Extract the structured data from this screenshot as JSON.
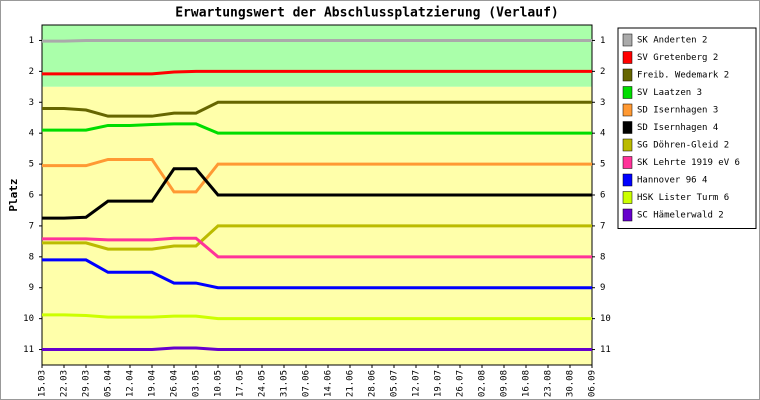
{
  "chart_data": {
    "type": "line",
    "title": "Erwartungswert der Abschlussplatzierung (Verlauf)",
    "y_label": "Platz",
    "categories": [
      "15.03",
      "22.03",
      "29.03",
      "05.04",
      "12.04",
      "19.04",
      "26.04",
      "03.05",
      "10.05",
      "17.05",
      "24.05",
      "31.05",
      "07.06",
      "14.06",
      "21.06",
      "28.06",
      "05.07",
      "12.07",
      "19.07",
      "26.07",
      "02.08",
      "09.08",
      "16.08",
      "23.08",
      "30.08",
      "06.09"
    ],
    "ylim": [
      11.5,
      0.5
    ],
    "yticks": [
      1,
      2,
      3,
      4,
      5,
      6,
      7,
      8,
      9,
      10,
      11
    ],
    "bands": [
      {
        "from": 0.5,
        "to": 2.5,
        "color": "#aaffaa"
      },
      {
        "from": 2.5,
        "to": 11.5,
        "color": "#ffffaa"
      }
    ],
    "legend": "right",
    "series": [
      {
        "name": "SK Anderten 2",
        "color": "#aaaaaa",
        "values": [
          1.02,
          1.02,
          1.0,
          1.0,
          1.0,
          1.0,
          1.0,
          1.0,
          1.0,
          1.0,
          1.0,
          1.0,
          1.0,
          1.0,
          1.0,
          1.0,
          1.0,
          1.0,
          1.0,
          1.0,
          1.0,
          1.0,
          1.0,
          1.0,
          1.0,
          1.0
        ]
      },
      {
        "name": "SV Gretenberg 2",
        "color": "#ff0000",
        "values": [
          2.08,
          2.08,
          2.08,
          2.08,
          2.08,
          2.08,
          2.02,
          2.0,
          2.0,
          2.0,
          2.0,
          2.0,
          2.0,
          2.0,
          2.0,
          2.0,
          2.0,
          2.0,
          2.0,
          2.0,
          2.0,
          2.0,
          2.0,
          2.0,
          2.0,
          2.0
        ]
      },
      {
        "name": "Freib. Wedemark 2",
        "color": "#666600",
        "values": [
          3.2,
          3.2,
          3.25,
          3.45,
          3.45,
          3.45,
          3.35,
          3.35,
          3.0,
          3.0,
          3.0,
          3.0,
          3.0,
          3.0,
          3.0,
          3.0,
          3.0,
          3.0,
          3.0,
          3.0,
          3.0,
          3.0,
          3.0,
          3.0,
          3.0,
          3.0
        ]
      },
      {
        "name": "SV Laatzen 3",
        "color": "#00dd00",
        "values": [
          3.9,
          3.9,
          3.9,
          3.75,
          3.75,
          3.72,
          3.7,
          3.7,
          4.0,
          4.0,
          4.0,
          4.0,
          4.0,
          4.0,
          4.0,
          4.0,
          4.0,
          4.0,
          4.0,
          4.0,
          4.0,
          4.0,
          4.0,
          4.0,
          4.0,
          4.0
        ]
      },
      {
        "name": "SD Isernhagen 3",
        "color": "#ff9933",
        "values": [
          5.05,
          5.05,
          5.05,
          4.85,
          4.85,
          4.85,
          5.9,
          5.9,
          5.0,
          5.0,
          5.0,
          5.0,
          5.0,
          5.0,
          5.0,
          5.0,
          5.0,
          5.0,
          5.0,
          5.0,
          5.0,
          5.0,
          5.0,
          5.0,
          5.0,
          5.0
        ]
      },
      {
        "name": "SD Isernhagen 4",
        "color": "#000000",
        "values": [
          6.75,
          6.75,
          6.72,
          6.2,
          6.2,
          6.2,
          5.15,
          5.15,
          6.0,
          6.0,
          6.0,
          6.0,
          6.0,
          6.0,
          6.0,
          6.0,
          6.0,
          6.0,
          6.0,
          6.0,
          6.0,
          6.0,
          6.0,
          6.0,
          6.0,
          6.0
        ]
      },
      {
        "name": "SG Döhren-Gleid 2",
        "color": "#bbbb00",
        "values": [
          7.55,
          7.55,
          7.55,
          7.75,
          7.75,
          7.75,
          7.65,
          7.65,
          7.0,
          7.0,
          7.0,
          7.0,
          7.0,
          7.0,
          7.0,
          7.0,
          7.0,
          7.0,
          7.0,
          7.0,
          7.0,
          7.0,
          7.0,
          7.0,
          7.0,
          7.0
        ]
      },
      {
        "name": "SK Lehrte 1919 eV 6",
        "color": "#ff3399",
        "values": [
          7.42,
          7.42,
          7.42,
          7.45,
          7.45,
          7.45,
          7.4,
          7.4,
          8.0,
          8.0,
          8.0,
          8.0,
          8.0,
          8.0,
          8.0,
          8.0,
          8.0,
          8.0,
          8.0,
          8.0,
          8.0,
          8.0,
          8.0,
          8.0,
          8.0,
          8.0
        ]
      },
      {
        "name": "Hannover 96 4",
        "color": "#0000ff",
        "values": [
          8.1,
          8.1,
          8.1,
          8.5,
          8.5,
          8.5,
          8.85,
          8.85,
          9.0,
          9.0,
          9.0,
          9.0,
          9.0,
          9.0,
          9.0,
          9.0,
          9.0,
          9.0,
          9.0,
          9.0,
          9.0,
          9.0,
          9.0,
          9.0,
          9.0,
          9.0
        ]
      },
      {
        "name": "HSK Lister Turm 6",
        "color": "#ccff00",
        "values": [
          9.88,
          9.88,
          9.9,
          9.95,
          9.95,
          9.95,
          9.92,
          9.92,
          10.0,
          10.0,
          10.0,
          10.0,
          10.0,
          10.0,
          10.0,
          10.0,
          10.0,
          10.0,
          10.0,
          10.0,
          10.0,
          10.0,
          10.0,
          10.0,
          10.0,
          10.0
        ]
      },
      {
        "name": "SC Hämelerwald 2",
        "color": "#6600cc",
        "values": [
          11.0,
          11.0,
          11.0,
          11.0,
          11.0,
          11.0,
          10.95,
          10.95,
          11.0,
          11.0,
          11.0,
          11.0,
          11.0,
          11.0,
          11.0,
          11.0,
          11.0,
          11.0,
          11.0,
          11.0,
          11.0,
          11.0,
          11.0,
          11.0,
          11.0,
          11.0
        ]
      }
    ]
  }
}
